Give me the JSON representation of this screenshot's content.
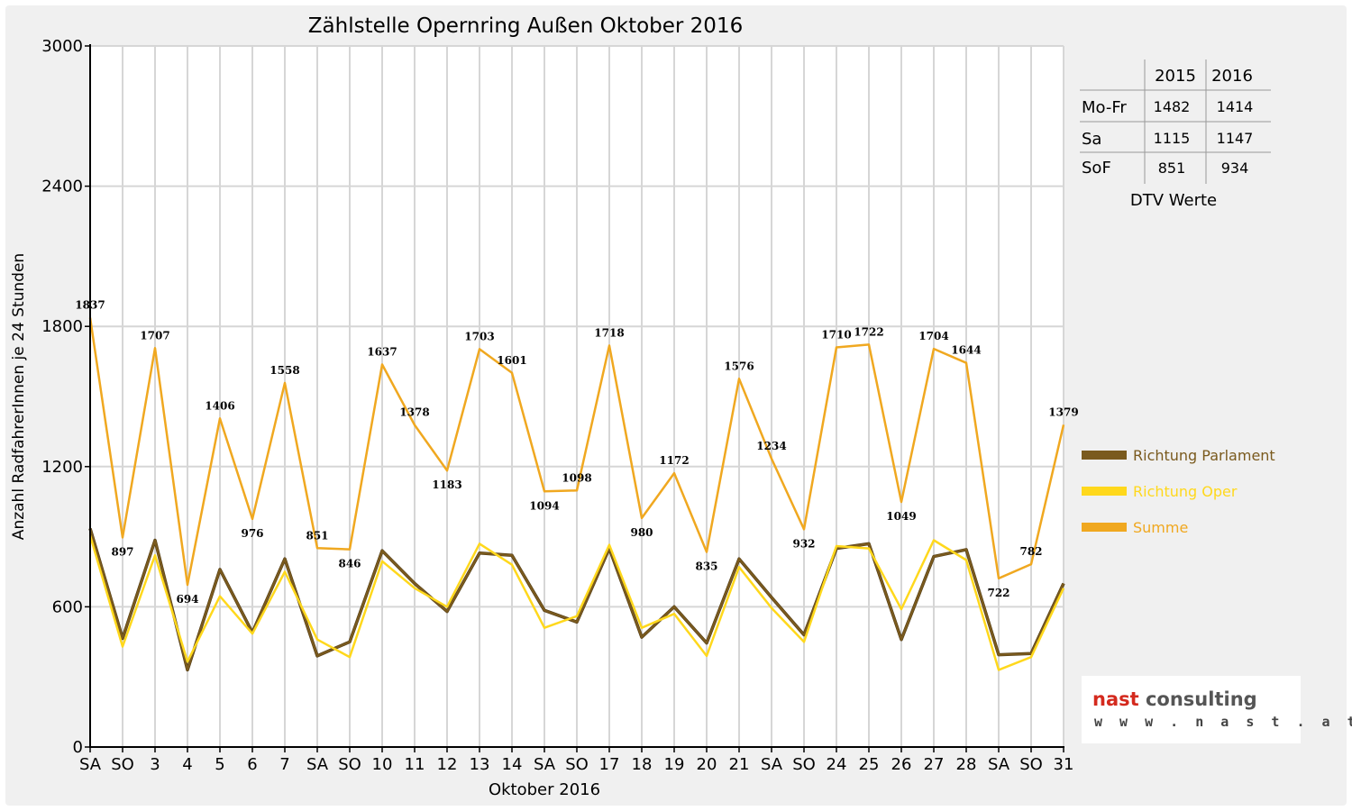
{
  "chart_data": {
    "type": "line",
    "title": "Zählstelle Opernring Außen Oktober 2016",
    "xlabel": "Oktober 2016",
    "ylabel": "Anzahl RadfahrerInnen je 24 Stunden",
    "ylim": [
      0,
      3000
    ],
    "yticks": [
      "0",
      "600",
      "1200",
      "1800",
      "2400",
      "3000"
    ],
    "grid": true,
    "legend_position": "right",
    "categories": [
      "SA",
      "SO",
      "3",
      "4",
      "5",
      "6",
      "7",
      "SA",
      "SO",
      "10",
      "11",
      "12",
      "13",
      "14",
      "SA",
      "SO",
      "17",
      "18",
      "19",
      "20",
      "21",
      "SA",
      "SO",
      "24",
      "25",
      "26",
      "27",
      "28",
      "SA",
      "SO",
      "31"
    ],
    "red_categories": [
      1,
      8,
      15,
      22,
      25,
      29
    ],
    "series": [
      {
        "name": "Richtung Parlament",
        "color": "#7a5a1e",
        "values": [
          935,
          465,
          885,
          330,
          760,
          490,
          805,
          390,
          450,
          840,
          700,
          580,
          830,
          820,
          585,
          535,
          850,
          470,
          600,
          445,
          805,
          640,
          480,
          850,
          870,
          460,
          815,
          845,
          395,
          400,
          700
        ]
      },
      {
        "name": "Richtung Oper",
        "color": "#ffd81c",
        "values": [
          905,
          430,
          820,
          365,
          645,
          485,
          750,
          460,
          385,
          795,
          680,
          600,
          870,
          780,
          510,
          560,
          865,
          510,
          570,
          390,
          770,
          595,
          450,
          860,
          850,
          590,
          885,
          800,
          330,
          385,
          680
        ]
      },
      {
        "name": "Summe",
        "color": "#f0a820",
        "values": [
          1837,
          897,
          1707,
          694,
          1406,
          976,
          1558,
          851,
          846,
          1637,
          1378,
          1183,
          1703,
          1601,
          1094,
          1098,
          1718,
          980,
          1172,
          835,
          1576,
          1234,
          932,
          1710,
          1722,
          1049,
          1704,
          1644,
          722,
          782,
          1379
        ],
        "labels": [
          "1837",
          "897",
          "1707",
          "694",
          "1406",
          "976",
          "1558",
          "851",
          "846",
          "1637",
          "1378",
          "1183",
          "1703",
          "1601",
          "1094",
          "1098",
          "1718",
          "980",
          "1172",
          "835",
          "1576",
          "1234",
          "932",
          "1710",
          "1722",
          "1049",
          "1704",
          "1644",
          "722",
          "782",
          "1379"
        ]
      }
    ],
    "dtv_table": {
      "caption": "DTV Werte",
      "columns": [
        "2015",
        "2016"
      ],
      "rows": [
        {
          "label": "Mo-Fr",
          "values": [
            "1482",
            "1414"
          ]
        },
        {
          "label": "Sa",
          "values": [
            "1115",
            "1147"
          ]
        },
        {
          "label": "SoF",
          "values": [
            "851",
            "934"
          ]
        }
      ]
    }
  },
  "logo": {
    "part1": "nast",
    "part2": " consulting",
    "url": "w w w . n a s t . a t",
    "color_red": "#d42a1e",
    "color_gray": "#555555"
  }
}
